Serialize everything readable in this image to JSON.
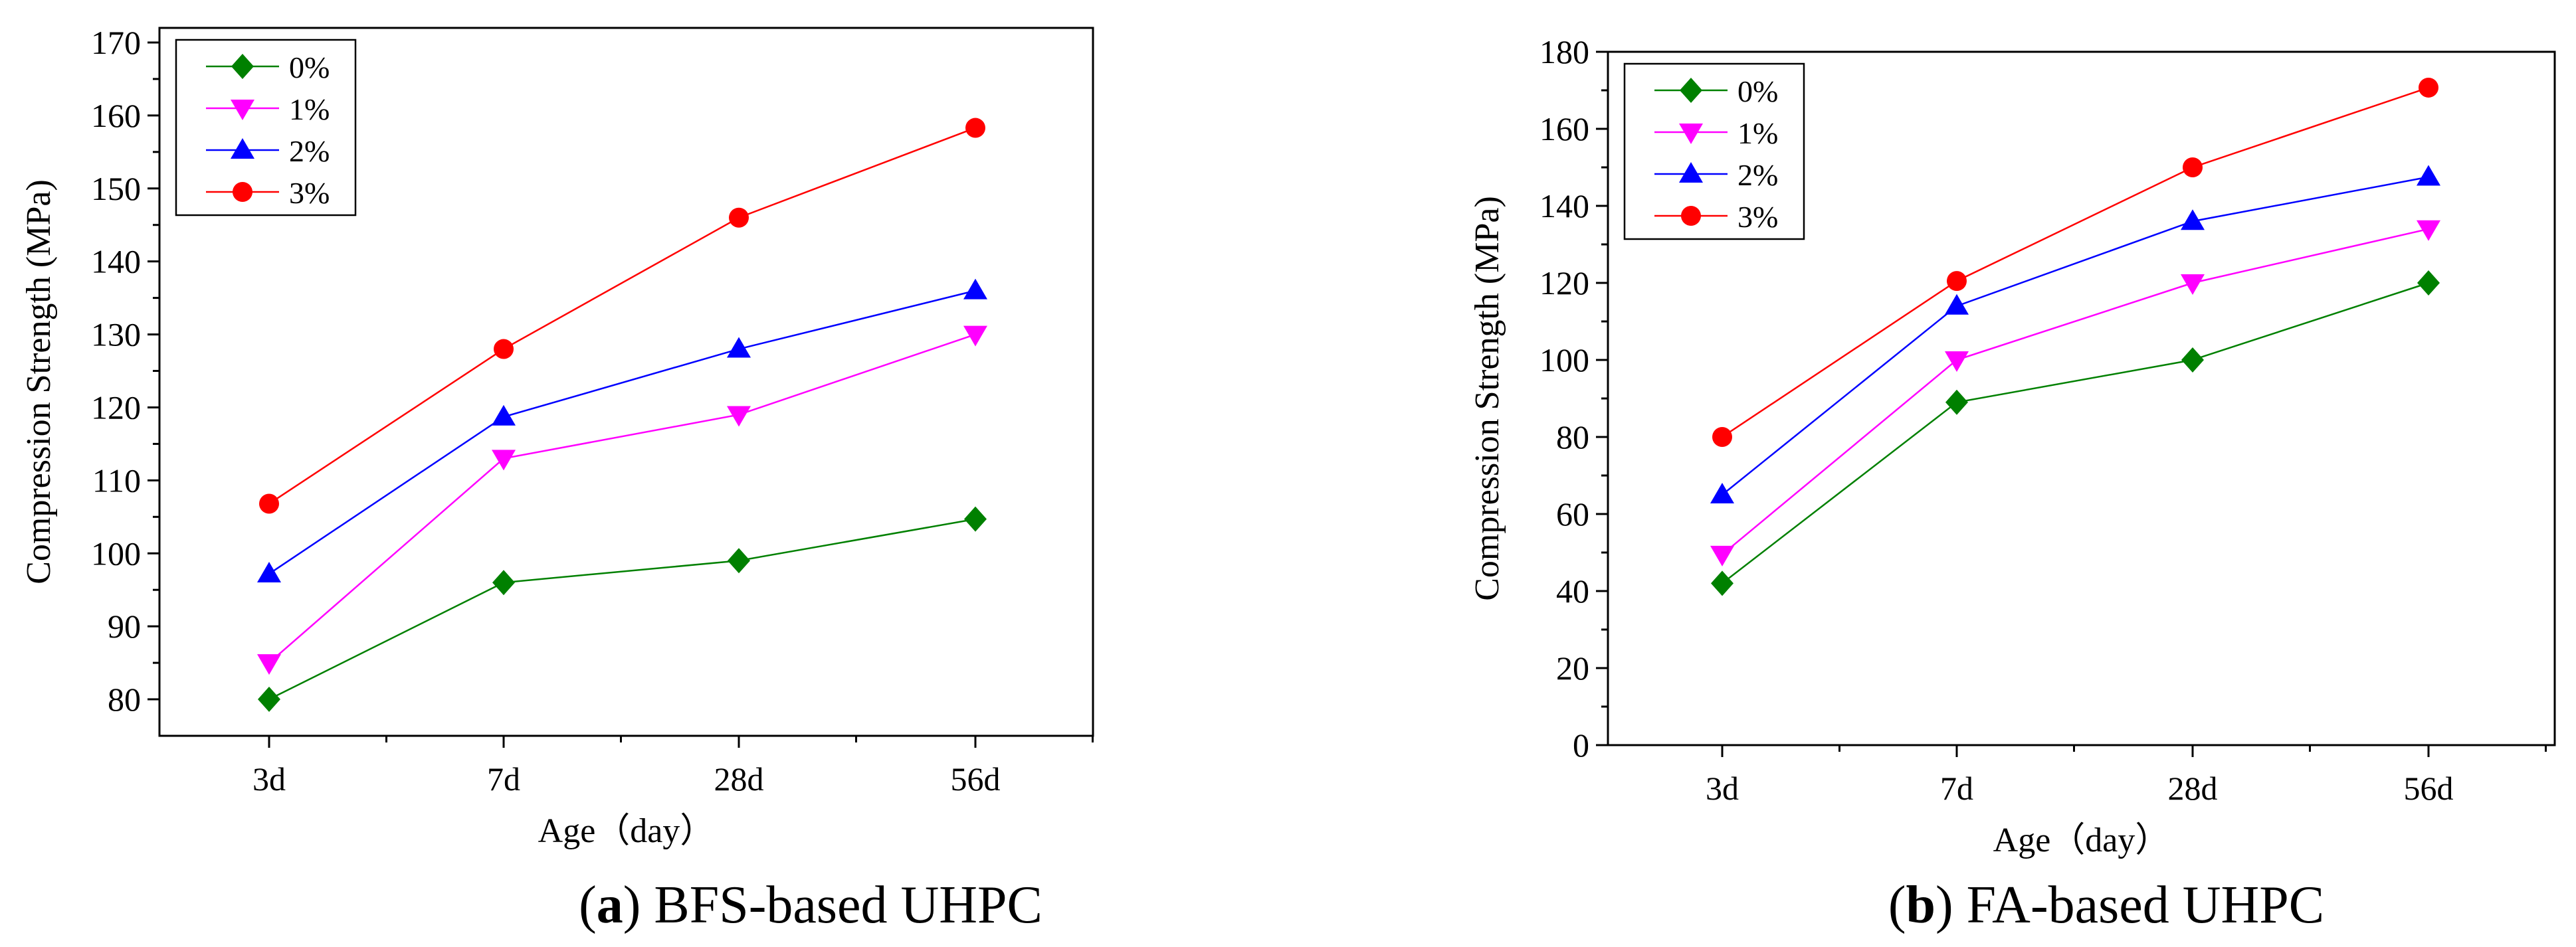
{
  "colors": {
    "0%": "#008000",
    "1%": "#ff00ff",
    "2%": "#0000ff",
    "3%": "#ff0000"
  },
  "chart_data": [
    {
      "type": "line",
      "caption_letter": "a",
      "caption_text": "BFS-based UHPC",
      "categories": [
        "3d",
        "7d",
        "28d",
        "56d"
      ],
      "xlabel": "Age（day）",
      "ylabel": "Compression Strength (MPa)",
      "ylim": [
        75,
        172
      ],
      "yticks": [
        80,
        90,
        100,
        110,
        120,
        130,
        140,
        150,
        160,
        170
      ],
      "ytick_labels": [
        "80",
        "90",
        "100",
        "110",
        "120",
        "130",
        "140",
        "150",
        "160",
        "170"
      ],
      "legend_position": "top-left",
      "series": [
        {
          "name": "0%",
          "marker": "diamond",
          "values": [
            80,
            96,
            99,
            104.7
          ]
        },
        {
          "name": "1%",
          "marker": "triangle-down",
          "values": [
            85,
            113,
            119,
            130
          ]
        },
        {
          "name": "2%",
          "marker": "triangle-up",
          "values": [
            97.2,
            118.7,
            128,
            136
          ]
        },
        {
          "name": "3%",
          "marker": "circle",
          "values": [
            106.8,
            128,
            146,
            158.3
          ]
        }
      ]
    },
    {
      "type": "line",
      "caption_letter": "b",
      "caption_text": "FA-based UHPC",
      "categories": [
        "3d",
        "7d",
        "28d",
        "56d"
      ],
      "xlabel": "Age（day）",
      "ylabel": "Compression Strength (MPa)",
      "ylim": [
        0,
        180
      ],
      "yticks": [
        0,
        20,
        40,
        60,
        80,
        100,
        120,
        140,
        160,
        180
      ],
      "ytick_labels": [
        "0",
        "20",
        "40",
        "60",
        "80",
        "100",
        "120",
        "140",
        "160",
        "180"
      ],
      "legend_position": "top-left",
      "series": [
        {
          "name": "0%",
          "marker": "diamond",
          "values": [
            42,
            89,
            100,
            120
          ]
        },
        {
          "name": "1%",
          "marker": "triangle-down",
          "values": [
            49.5,
            100,
            120,
            134
          ]
        },
        {
          "name": "2%",
          "marker": "triangle-up",
          "values": [
            65,
            114,
            136,
            147.5
          ]
        },
        {
          "name": "3%",
          "marker": "circle",
          "values": [
            80,
            120.5,
            150,
            170.7
          ]
        }
      ]
    }
  ]
}
